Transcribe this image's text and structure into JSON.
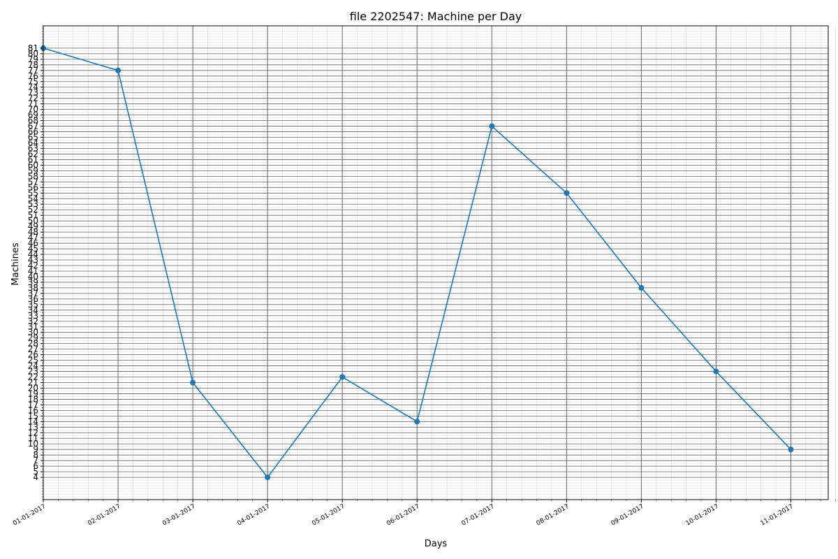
{
  "chart_data": {
    "type": "line",
    "title": "file 2202547: Machine per Day",
    "xlabel": "Days",
    "ylabel": "Machines",
    "categories": [
      "01-01-2017",
      "02-01-2017",
      "03-01-2017",
      "04-01-2017",
      "05-01-2017",
      "06-01-2017",
      "07-01-2017",
      "08-01-2017",
      "09-01-2017",
      "10-01-2017",
      "11-01-2017"
    ],
    "values": [
      81,
      77,
      21,
      4,
      22,
      14,
      67,
      55,
      38,
      23,
      9
    ],
    "xlim": [
      0,
      10.5
    ],
    "ylim": [
      0,
      85
    ],
    "yticks": [
      4,
      5,
      6,
      7,
      8,
      9,
      10,
      11,
      12,
      13,
      14,
      15,
      16,
      17,
      18,
      19,
      20,
      21,
      22,
      23,
      24,
      25,
      26,
      27,
      28,
      29,
      30,
      31,
      32,
      33,
      34,
      35,
      36,
      37,
      38,
      39,
      40,
      41,
      42,
      43,
      44,
      45,
      46,
      47,
      48,
      49,
      50,
      51,
      52,
      53,
      54,
      55,
      56,
      57,
      58,
      59,
      60,
      61,
      62,
      63,
      64,
      65,
      66,
      67,
      68,
      69,
      70,
      71,
      72,
      73,
      74,
      75,
      76,
      77,
      78,
      79,
      80,
      81
    ],
    "grid": true,
    "line_color": "#1f77b4",
    "major_grid_color": "#666666",
    "minor_grid_color": "#dddddd"
  }
}
